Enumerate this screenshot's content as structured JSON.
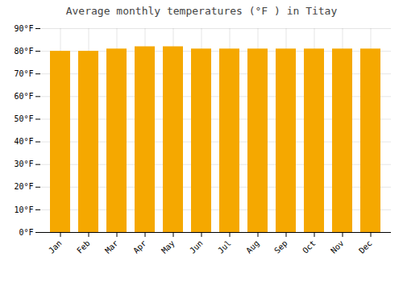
{
  "chart_data": {
    "type": "bar",
    "title": "Average monthly temperatures (°F ) in Titay",
    "categories": [
      "Jan",
      "Feb",
      "Mar",
      "Apr",
      "May",
      "Jun",
      "Jul",
      "Aug",
      "Sep",
      "Oct",
      "Nov",
      "Dec"
    ],
    "values": [
      80,
      80,
      81,
      82,
      82,
      81,
      81,
      81,
      81,
      81,
      81,
      81
    ],
    "color": "#F5A800",
    "ylim": [
      0,
      90
    ],
    "yticks": [
      {
        "value": 0,
        "label": "0°F"
      },
      {
        "value": 10,
        "label": "10°F"
      },
      {
        "value": 20,
        "label": "20°F"
      },
      {
        "value": 30,
        "label": "30°F"
      },
      {
        "value": 40,
        "label": "40°F"
      },
      {
        "value": 50,
        "label": "50°F"
      },
      {
        "value": 60,
        "label": "60°F"
      },
      {
        "value": 70,
        "label": "70°F"
      },
      {
        "value": 80,
        "label": "80°F"
      },
      {
        "value": 90,
        "label": "90°F"
      }
    ],
    "grid": true
  }
}
